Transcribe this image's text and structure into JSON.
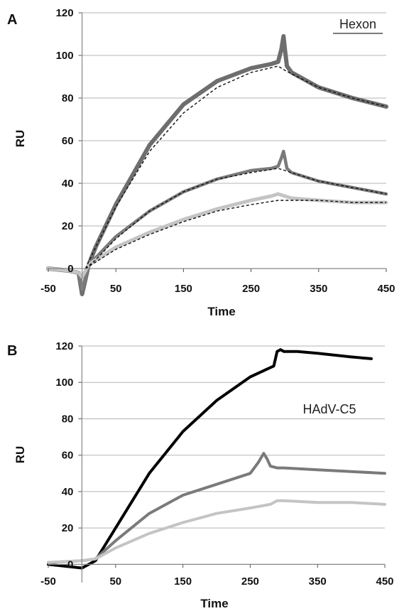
{
  "chart_data": [
    {
      "panel": "A",
      "type": "line",
      "annotation": "Hexon",
      "xlabel": "Time",
      "ylabel": "RU",
      "xlim": [
        -50,
        450
      ],
      "ylim": [
        -10,
        120
      ],
      "xticks": [
        -50,
        50,
        150,
        250,
        350,
        450
      ],
      "yticks": [
        0,
        20,
        40,
        60,
        80,
        100,
        120
      ],
      "grid": "horizontal",
      "series": [
        {
          "color": "#6e6e6e",
          "x": [
            -50,
            -20,
            -5,
            0,
            5,
            10,
            20,
            50,
            100,
            150,
            200,
            250,
            280,
            290,
            295,
            298,
            300,
            303,
            310,
            350,
            400,
            450
          ],
          "y": [
            0,
            -1,
            -2,
            -12,
            -5,
            2,
            10,
            30,
            58,
            77,
            88,
            94,
            96,
            97,
            103,
            109,
            103,
            95,
            92,
            85,
            80,
            76
          ]
        },
        {
          "color": "#7a7a7a",
          "x": [
            -50,
            -20,
            -5,
            0,
            5,
            10,
            20,
            50,
            100,
            150,
            200,
            250,
            280,
            290,
            295,
            298,
            300,
            303,
            310,
            350,
            400,
            450
          ],
          "y": [
            0,
            -1,
            -2,
            -10,
            -4,
            2,
            5,
            15,
            27,
            36,
            42,
            46,
            47,
            48,
            52,
            55,
            52,
            47,
            45,
            41,
            38,
            35
          ]
        },
        {
          "color": "#c4c4c4",
          "x": [
            -50,
            -20,
            -5,
            0,
            5,
            10,
            20,
            50,
            100,
            150,
            200,
            250,
            280,
            290,
            300,
            310,
            350,
            400,
            450
          ],
          "y": [
            0,
            -1,
            -2,
            -4,
            -1,
            2,
            4,
            10,
            17,
            23,
            28,
            32,
            34,
            35,
            34,
            33,
            32,
            31,
            31
          ]
        }
      ],
      "fits": [
        {
          "x": [
            5,
            20,
            50,
            100,
            150,
            200,
            250,
            290,
            300,
            350,
            400,
            450
          ],
          "y": [
            0,
            10,
            29,
            55,
            73,
            85,
            92,
            95,
            93,
            85,
            80,
            76
          ]
        },
        {
          "x": [
            5,
            20,
            50,
            100,
            150,
            200,
            250,
            290,
            300,
            350,
            400,
            450
          ],
          "y": [
            0,
            4,
            14,
            27,
            36,
            42,
            45,
            47,
            46,
            41,
            38,
            35
          ]
        },
        {
          "x": [
            5,
            20,
            50,
            100,
            150,
            200,
            250,
            290,
            300,
            350,
            400,
            450
          ],
          "y": [
            0,
            3,
            9,
            16,
            22,
            27,
            30,
            32,
            32,
            32,
            31,
            31
          ]
        }
      ]
    },
    {
      "panel": "B",
      "type": "line",
      "annotation": "HAdV-C5",
      "xlabel": "Time",
      "ylabel": "RU",
      "xlim": [
        -50,
        450
      ],
      "ylim": [
        -10,
        120
      ],
      "xticks": [
        -50,
        50,
        150,
        250,
        350,
        450
      ],
      "yticks": [
        0,
        20,
        40,
        60,
        80,
        100,
        120
      ],
      "grid": "horizontal",
      "series": [
        {
          "color": "#000000",
          "x": [
            -50,
            0,
            20,
            50,
            100,
            150,
            200,
            250,
            285,
            290,
            295,
            300,
            320,
            350,
            400,
            430
          ],
          "y": [
            0,
            -2,
            2,
            20,
            50,
            73,
            90,
            103,
            109,
            117,
            118,
            117,
            117,
            116,
            114,
            113
          ]
        },
        {
          "color": "#7a7a7a",
          "x": [
            -50,
            0,
            20,
            50,
            100,
            150,
            200,
            250,
            262,
            270,
            275,
            280,
            290,
            300,
            350,
            400,
            450
          ],
          "y": [
            1,
            2,
            3,
            13,
            28,
            38,
            44,
            50,
            56,
            61,
            58,
            54,
            53,
            53,
            52,
            51,
            50
          ]
        },
        {
          "color": "#c4c4c4",
          "x": [
            -50,
            0,
            20,
            50,
            100,
            150,
            200,
            250,
            280,
            290,
            300,
            350,
            400,
            450
          ],
          "y": [
            1,
            2,
            3,
            9,
            17,
            23,
            28,
            31,
            33,
            35,
            35,
            34,
            34,
            33
          ]
        }
      ]
    }
  ]
}
